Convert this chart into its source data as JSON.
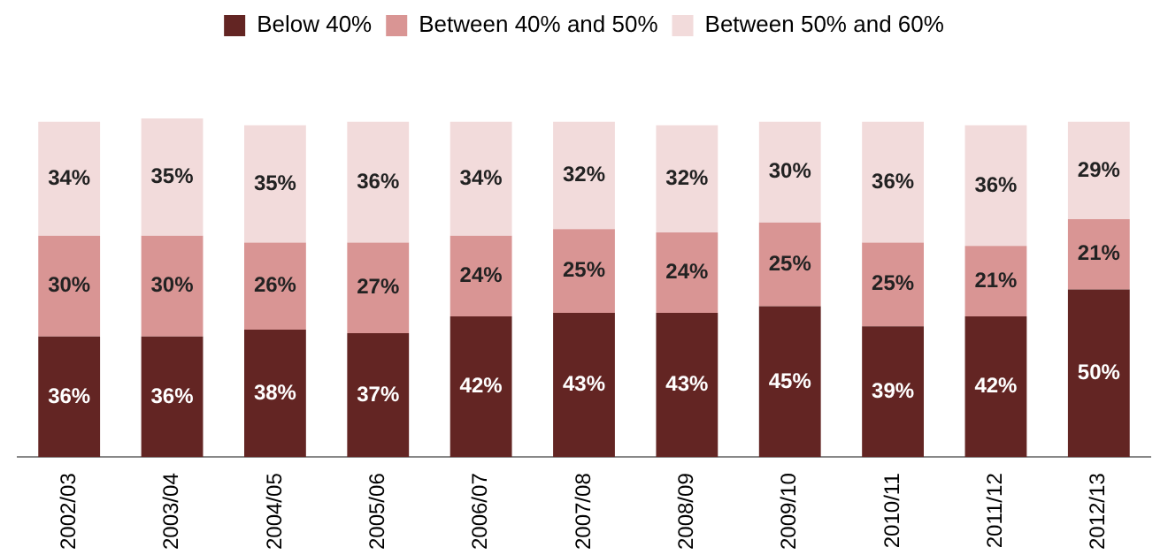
{
  "chart_data": {
    "type": "bar",
    "stacked": true,
    "legend": "top",
    "grid": false,
    "tick_labels": "x",
    "categories": [
      "2002/03",
      "2003/04",
      "2004/05",
      "2005/06",
      "2006/07",
      "2007/08",
      "2008/09",
      "2009/10",
      "2010/11",
      "2011/12",
      "2012/13"
    ],
    "series": [
      {
        "name": "Below 40%",
        "color": "#632523",
        "values": [
          36,
          36,
          38,
          37,
          42,
          43,
          43,
          45,
          39,
          42,
          50
        ],
        "value_labels": [
          "36%",
          "36%",
          "38%",
          "37%",
          "42%",
          "43%",
          "43%",
          "45%",
          "39%",
          "42%",
          "50%"
        ]
      },
      {
        "name": "Between 40% and 50%",
        "color": "#d99594",
        "values": [
          30,
          30,
          26,
          27,
          24,
          25,
          24,
          25,
          25,
          21,
          21
        ],
        "value_labels": [
          "30%",
          "30%",
          "26%",
          "27%",
          "24%",
          "25%",
          "24%",
          "25%",
          "25%",
          "21%",
          "21%"
        ]
      },
      {
        "name": "Between 50% and 60%",
        "color": "#f2dbdb",
        "values": [
          34,
          35,
          35,
          36,
          34,
          32,
          32,
          30,
          36,
          36,
          29
        ],
        "value_labels": [
          "34%",
          "35%",
          "35%",
          "36%",
          "34%",
          "32%",
          "32%",
          "30%",
          "36%",
          "36%",
          "29%"
        ]
      }
    ]
  }
}
